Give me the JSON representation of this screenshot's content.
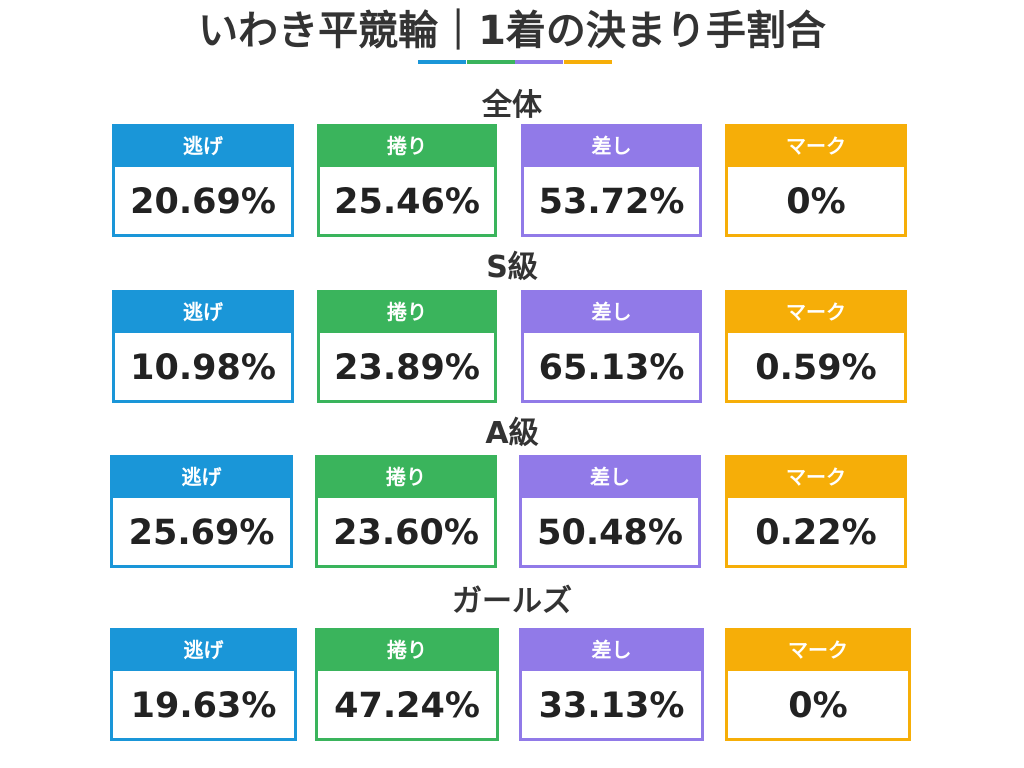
{
  "title": "いわき平競輪｜1着の決まり手割合",
  "colors": {
    "nige": "#1a96d8",
    "makuri": "#3ab45c",
    "sashi": "#917ae8",
    "mark": "#f6ae08"
  },
  "categories": [
    "逃げ",
    "捲り",
    "差し",
    "マーク"
  ],
  "sections": [
    {
      "title": "全体",
      "values": [
        "20.69%",
        "25.46%",
        "53.72%",
        "0%"
      ]
    },
    {
      "title": "S級",
      "values": [
        "10.98%",
        "23.89%",
        "65.13%",
        "0.59%"
      ]
    },
    {
      "title": "A級",
      "values": [
        "25.69%",
        "23.60%",
        "50.48%",
        "0.22%"
      ]
    },
    {
      "title": "ガールズ",
      "values": [
        "19.63%",
        "47.24%",
        "33.13%",
        "0%"
      ]
    }
  ]
}
